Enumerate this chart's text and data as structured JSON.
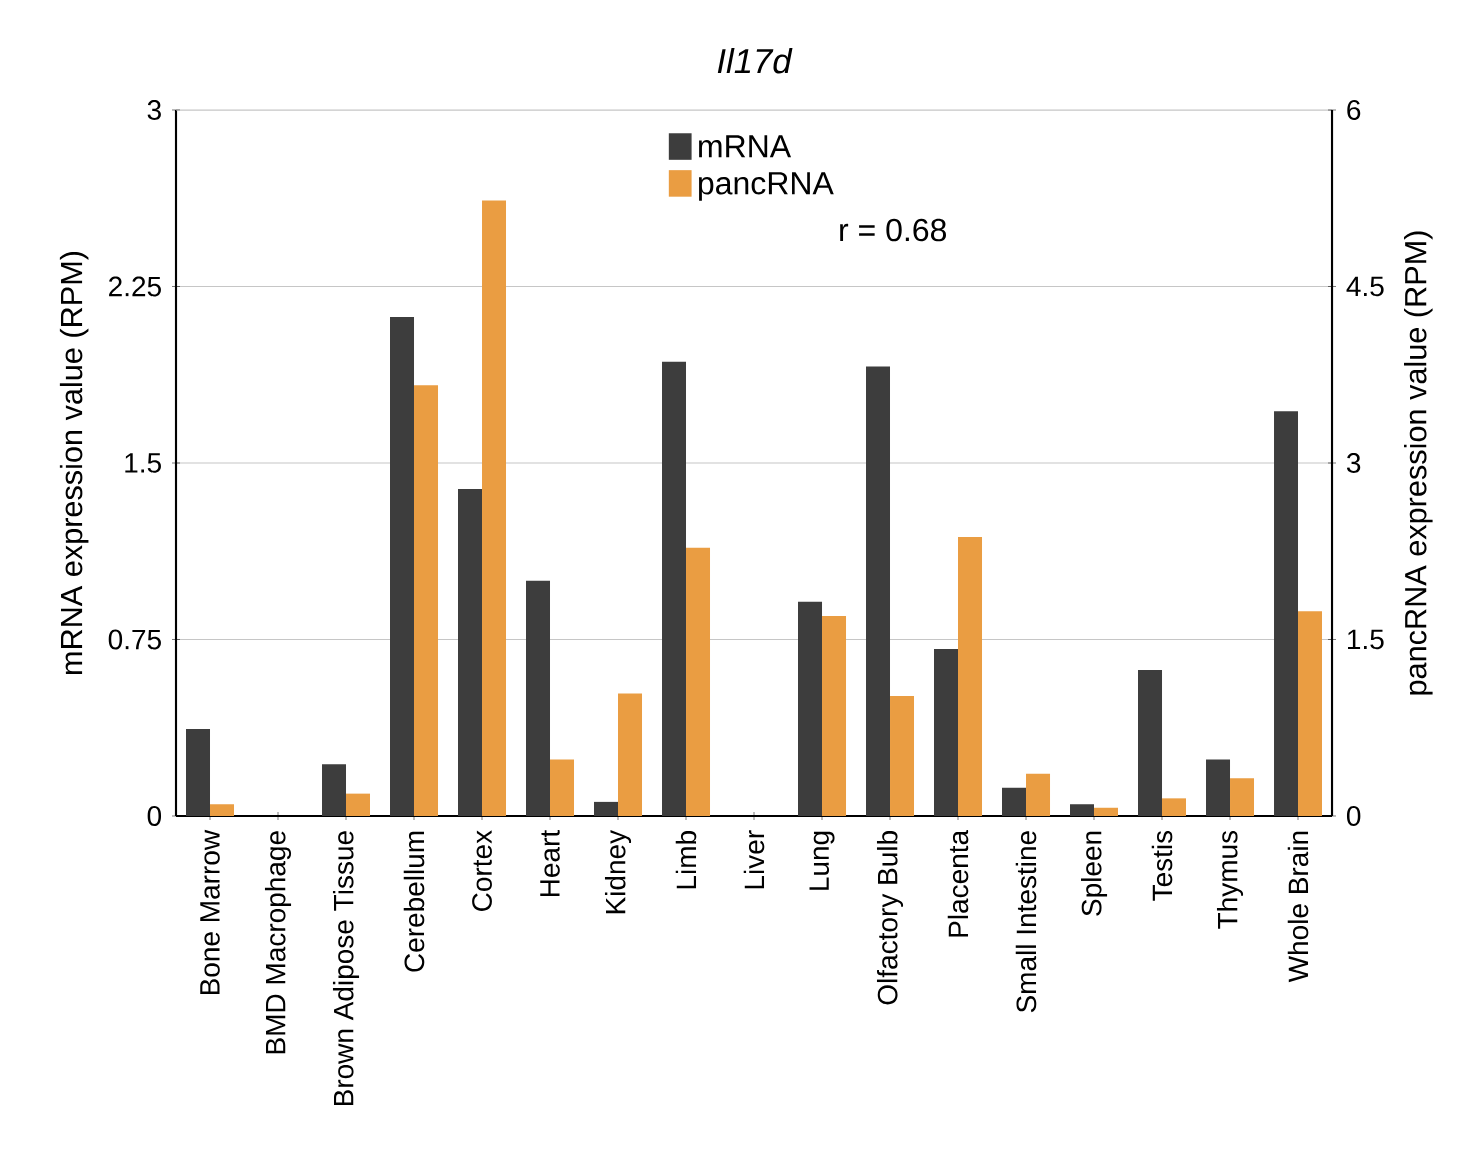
{
  "chart_data": {
    "type": "bar",
    "title": "Il17d",
    "ylabel": "mRNA expression value (RPM)",
    "y2label": "pancRNA expression value (RPM)",
    "categories": [
      "Bone Marrow",
      "BMD Macrophage",
      "Brown Adipose Tissue",
      "Cerebellum",
      "Cortex",
      "Heart",
      "Kidney",
      "Limb",
      "Liver",
      "Lung",
      "Olfactory Bulb",
      "Placenta",
      "Small Intestine",
      "Spleen",
      "Testis",
      "Thymus",
      "Whole Brain"
    ],
    "series": [
      {
        "name": "mRNA",
        "color": "#3d3d3d",
        "values": [
          0.37,
          0,
          0.22,
          2.12,
          1.39,
          1.0,
          0.06,
          1.93,
          0,
          0.91,
          1.91,
          0.71,
          0.12,
          0.05,
          0.62,
          0.24,
          1.72
        ]
      },
      {
        "name": "pancRNA",
        "color": "#ea9d42",
        "axis": "y2",
        "values": [
          0.1,
          0,
          0.19,
          3.66,
          5.23,
          0.48,
          1.04,
          2.28,
          0,
          1.7,
          1.02,
          2.37,
          0.36,
          0.07,
          0.15,
          0.32,
          1.74
        ]
      }
    ],
    "ylim": [
      0,
      3
    ],
    "yticks": [
      0,
      0.75,
      1.5,
      2.25,
      3
    ],
    "y2lim": [
      0,
      6
    ],
    "y2ticks": [
      0,
      1.5,
      3,
      4.5,
      6
    ],
    "annotations": [
      "r = 0.68"
    ],
    "grid": "y",
    "legend": "top"
  }
}
